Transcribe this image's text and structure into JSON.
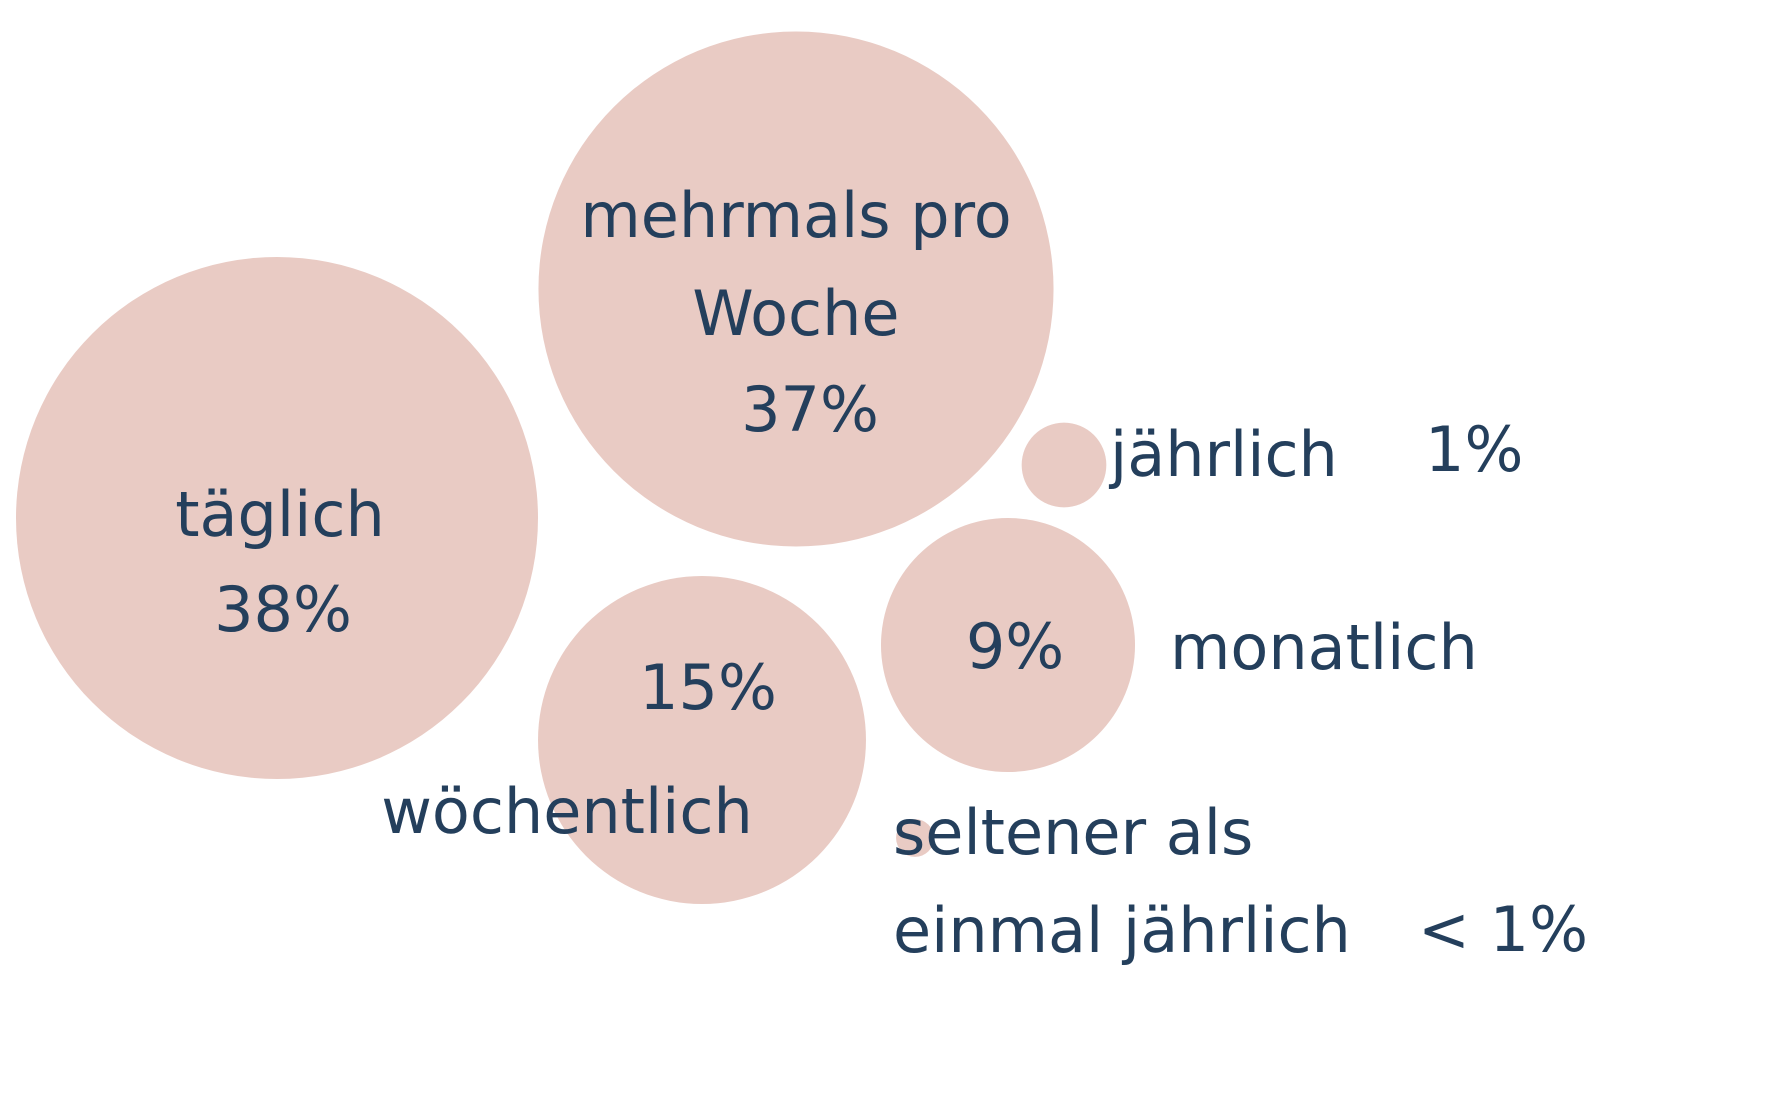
{
  "chart_data": {
    "type": "bubble",
    "categories": [
      "täglich",
      "mehrmals pro Woche",
      "wöchentlich",
      "monatlich",
      "jährlich",
      "seltener als einmal jährlich"
    ],
    "values": [
      38,
      37,
      15,
      9,
      1,
      0.2
    ],
    "value_labels": [
      "38%",
      "37%",
      "15%",
      "9%",
      "1%",
      "< 1%"
    ],
    "color": "#e9cbc4"
  }
}
